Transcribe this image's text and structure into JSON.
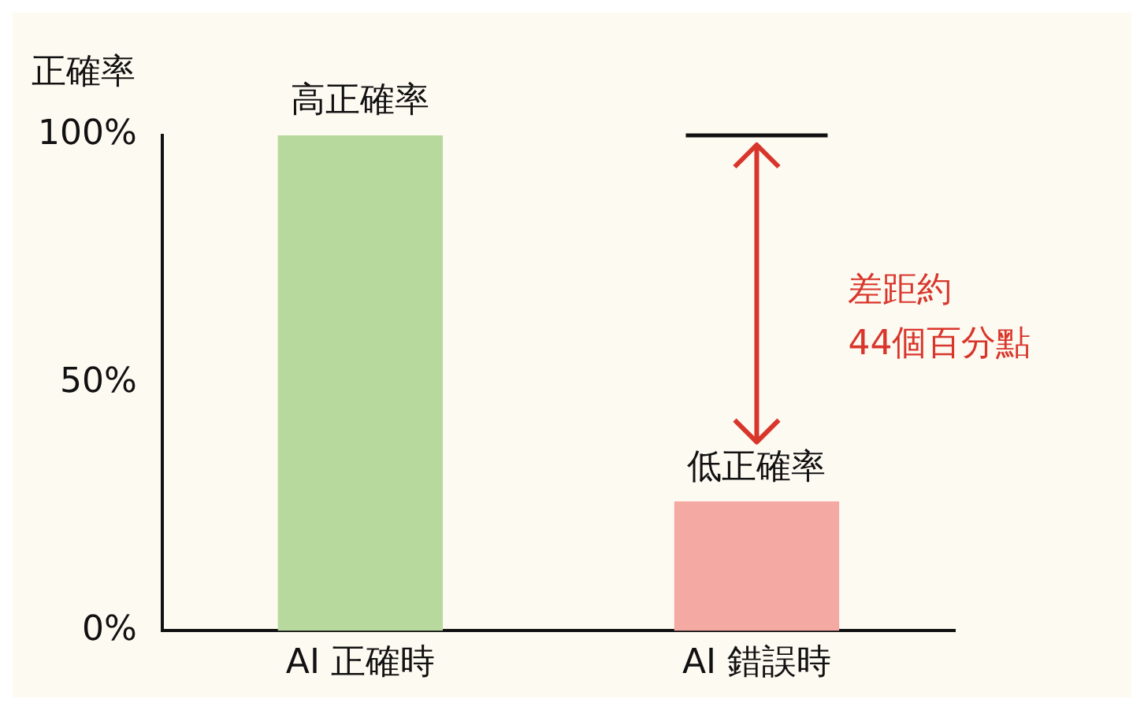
{
  "chart_data": {
    "type": "bar",
    "ylabel": "正確率",
    "categories": [
      "AI 正確時",
      "AI 錯誤時"
    ],
    "values": [
      100,
      26
    ],
    "colors": [
      "#b7d99e",
      "#f4a9a3"
    ],
    "ylim": [
      0,
      100
    ],
    "yticks": [
      {
        "value": 0,
        "label": "0%"
      },
      {
        "value": 50,
        "label": "50%"
      },
      {
        "value": 100,
        "label": "100%"
      }
    ],
    "grid": false,
    "legend": false,
    "annotations": [
      {
        "text": "高正確率",
        "x": "AI 正確時",
        "y": 100
      },
      {
        "text": "低正確率",
        "x": "AI 錯誤時",
        "y": 26
      },
      "差距約\n44個百分點"
    ]
  }
}
